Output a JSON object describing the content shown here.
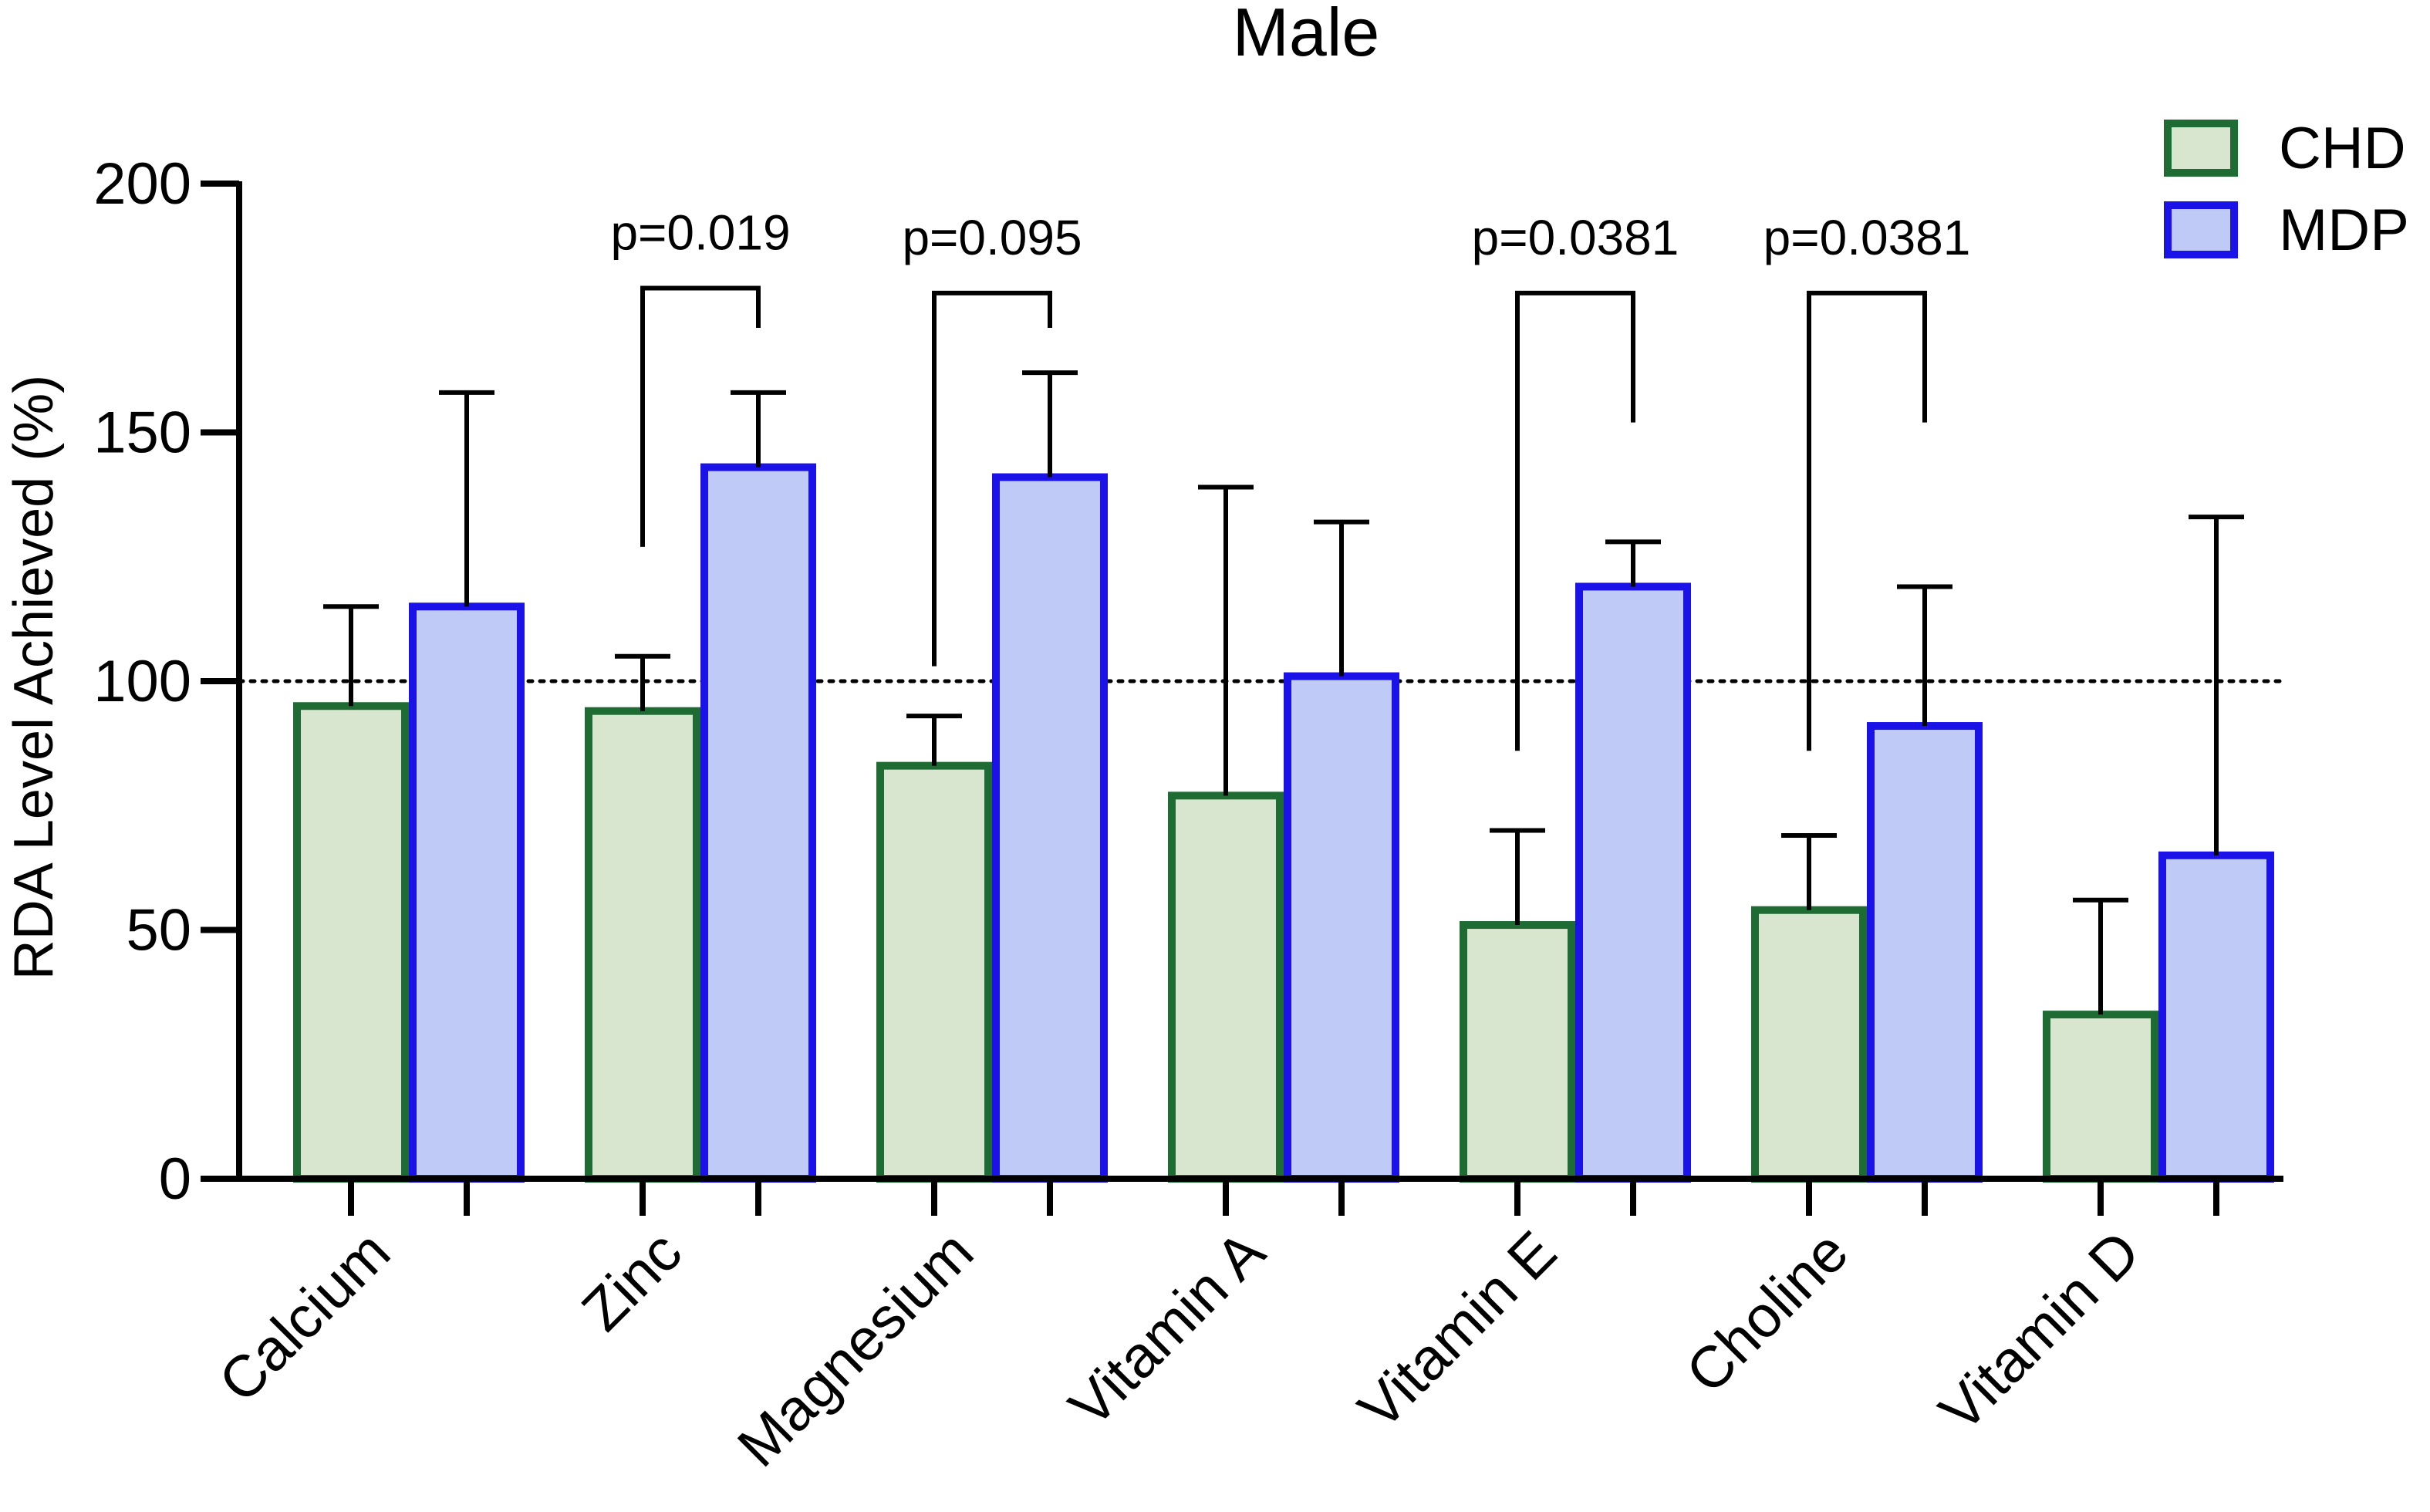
{
  "chart_data": {
    "type": "bar",
    "title": "Male",
    "xlabel": "",
    "ylabel": "RDA Level Achieved (%)",
    "ylim": [
      0,
      200
    ],
    "yticks": [
      0,
      50,
      100,
      150,
      200
    ],
    "reference_line": 100,
    "categories": [
      "Calcium",
      "Zinc",
      "Magnesium",
      "Vitamin A",
      "Vitamin E",
      "Choline",
      "Vitamin D"
    ],
    "series": [
      {
        "name": "CHD",
        "values": [
          95,
          94,
          83,
          77,
          51,
          54,
          33
        ],
        "errors": [
          20,
          11,
          10,
          62,
          19,
          15,
          23
        ],
        "fill": "#d9e6cf",
        "stroke": "#1e6b34"
      },
      {
        "name": "MDP",
        "values": [
          115,
          143,
          141,
          101,
          119,
          91,
          65
        ],
        "errors": [
          43,
          15,
          21,
          31,
          9,
          28,
          68
        ],
        "fill": "#bfcaf7",
        "stroke": "#1a12e6"
      }
    ],
    "legend": [
      "CHD",
      "MDP"
    ],
    "legend_position": "top-right",
    "annotations": [
      {
        "category": "Zinc",
        "text": "p=0.019",
        "left_y": 127,
        "right_y": 171,
        "top_y": 179
      },
      {
        "category": "Magnesium",
        "text": "p=0.095",
        "left_y": 103,
        "right_y": 171,
        "top_y": 178
      },
      {
        "category": "Vitamin E",
        "text": "p=0.0381",
        "left_y": 86,
        "right_y": 152,
        "top_y": 178
      },
      {
        "category": "Choline",
        "text": "p=0.0381",
        "left_y": 86,
        "right_y": 152,
        "top_y": 178
      }
    ]
  }
}
